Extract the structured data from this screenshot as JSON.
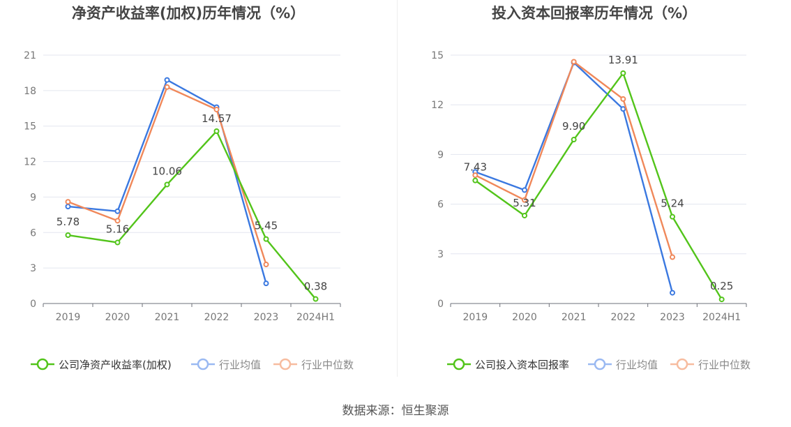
{
  "source_label": "数据来源：恒生聚源",
  "chart_data": [
    {
      "type": "line",
      "title": "净资产收益率(加权)历年情况（%）",
      "categories": [
        "2019",
        "2020",
        "2021",
        "2022",
        "2023",
        "2024H1"
      ],
      "y_ticks": [
        "0",
        "3",
        "6",
        "9",
        "12",
        "15",
        "18",
        "21"
      ],
      "ylim": [
        0,
        21
      ],
      "grid": true,
      "legend_position": "bottom",
      "series": [
        {
          "name": "公司净资产收益率(加权)",
          "color": "#52c41a",
          "values": [
            5.78,
            5.16,
            10.06,
            14.57,
            5.45,
            0.38
          ],
          "labels": [
            "5.78",
            "5.16",
            "10.06",
            "14.57",
            "5.45",
            "0.38"
          ]
        },
        {
          "name": "行业均值",
          "color": "#3a78e0",
          "values": [
            8.2,
            7.8,
            18.9,
            16.6,
            1.7,
            null
          ]
        },
        {
          "name": "行业中位数",
          "color": "#f0885a",
          "values": [
            8.6,
            7.0,
            18.3,
            16.4,
            3.3,
            null
          ]
        }
      ]
    },
    {
      "type": "line",
      "title": "投入资本回报率历年情况（%）",
      "categories": [
        "2019",
        "2020",
        "2021",
        "2022",
        "2023",
        "2024H1"
      ],
      "y_ticks": [
        "0",
        "3",
        "6",
        "9",
        "12",
        "15"
      ],
      "ylim": [
        0,
        15
      ],
      "grid": true,
      "legend_position": "bottom",
      "series": [
        {
          "name": "公司投入资本回报率",
          "color": "#52c41a",
          "values": [
            7.43,
            5.31,
            9.9,
            13.91,
            5.24,
            0.25
          ],
          "labels": [
            "7.43",
            "5.31",
            "9.90",
            "13.91",
            "5.24",
            "0.25"
          ]
        },
        {
          "name": "行业均值",
          "color": "#3a78e0",
          "values": [
            7.95,
            6.85,
            14.55,
            11.75,
            0.65,
            null
          ]
        },
        {
          "name": "行业中位数",
          "color": "#f0885a",
          "values": [
            7.75,
            6.25,
            14.6,
            12.35,
            2.8,
            null
          ]
        }
      ]
    }
  ]
}
